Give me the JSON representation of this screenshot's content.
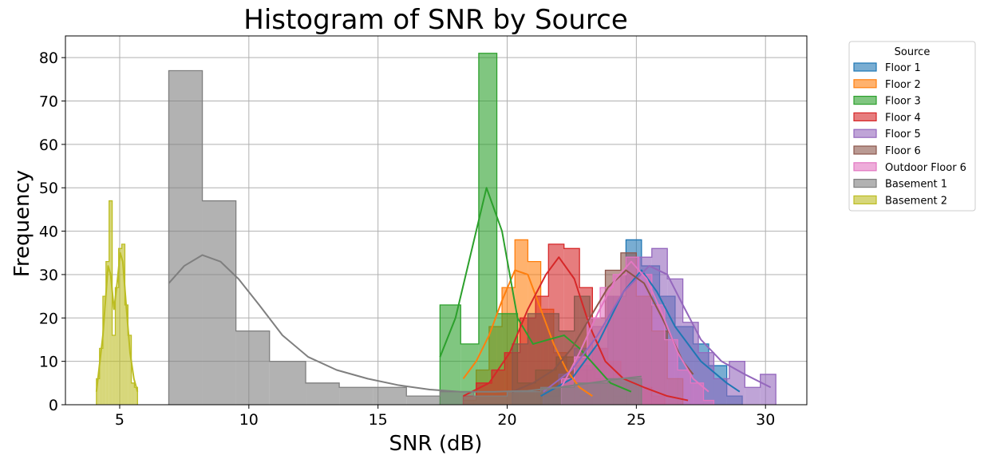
{
  "chart_data": {
    "type": "histogram",
    "title": "Histogram of SNR by Source",
    "xlabel": "SNR (dB)",
    "ylabel": "Frequency",
    "xlim": [
      2.9,
      31.6
    ],
    "ylim": [
      0,
      85
    ],
    "xticks": [
      5,
      10,
      15,
      20,
      25,
      30
    ],
    "yticks": [
      0,
      10,
      20,
      30,
      40,
      50,
      60,
      70,
      80
    ],
    "grid": true,
    "legend": {
      "title": "Source",
      "placement": "outside-top-right"
    },
    "series": [
      {
        "name": "Floor 1",
        "color": "#1f77b4",
        "bins": [
          [
            21.3,
            22.0,
            2
          ],
          [
            22.0,
            22.6,
            5
          ],
          [
            22.6,
            23.3,
            8
          ],
          [
            23.3,
            23.9,
            13
          ],
          [
            23.9,
            24.6,
            25
          ],
          [
            24.6,
            25.2,
            38
          ],
          [
            25.2,
            25.9,
            32
          ],
          [
            25.9,
            26.5,
            25
          ],
          [
            26.5,
            27.2,
            18
          ],
          [
            27.2,
            27.8,
            14
          ],
          [
            27.8,
            28.5,
            9
          ],
          [
            28.5,
            29.1,
            2
          ]
        ],
        "kde": [
          [
            21.3,
            2
          ],
          [
            22.5,
            6
          ],
          [
            23.5,
            14
          ],
          [
            24.5,
            26
          ],
          [
            25.2,
            31
          ],
          [
            25.8,
            26
          ],
          [
            26.5,
            18
          ],
          [
            27.5,
            10
          ],
          [
            28.5,
            5
          ],
          [
            29.0,
            3
          ]
        ]
      },
      {
        "name": "Floor 2",
        "color": "#ff7f0e",
        "bins": [
          [
            18.3,
            18.8,
            1
          ],
          [
            18.8,
            19.3,
            8
          ],
          [
            19.3,
            19.8,
            18
          ],
          [
            19.8,
            20.3,
            27
          ],
          [
            20.3,
            20.8,
            38
          ],
          [
            20.8,
            21.3,
            33
          ],
          [
            21.3,
            21.8,
            22
          ],
          [
            21.8,
            22.3,
            12
          ],
          [
            22.3,
            22.8,
            5
          ],
          [
            22.8,
            23.3,
            2
          ]
        ],
        "kde": [
          [
            18.3,
            6
          ],
          [
            18.8,
            10
          ],
          [
            19.3,
            16
          ],
          [
            19.8,
            24
          ],
          [
            20.3,
            31
          ],
          [
            20.8,
            30
          ],
          [
            21.3,
            22
          ],
          [
            21.8,
            14
          ],
          [
            22.3,
            8
          ],
          [
            22.8,
            4
          ],
          [
            23.3,
            2
          ]
        ]
      },
      {
        "name": "Floor 3",
        "color": "#2ca02c",
        "bins": [
          [
            17.4,
            18.2,
            23
          ],
          [
            18.2,
            18.9,
            14
          ],
          [
            18.9,
            19.6,
            81
          ],
          [
            19.6,
            20.4,
            21
          ],
          [
            20.4,
            21.1,
            5
          ],
          [
            21.1,
            21.9,
            8
          ],
          [
            21.9,
            22.6,
            11
          ],
          [
            22.6,
            23.4,
            9
          ],
          [
            23.4,
            24.1,
            6
          ],
          [
            24.1,
            24.8,
            2
          ]
        ],
        "kde": [
          [
            17.4,
            11
          ],
          [
            18.0,
            20
          ],
          [
            18.6,
            35
          ],
          [
            19.2,
            50
          ],
          [
            19.8,
            40
          ],
          [
            20.4,
            20
          ],
          [
            21.0,
            14
          ],
          [
            21.6,
            15
          ],
          [
            22.2,
            16
          ],
          [
            22.8,
            13
          ],
          [
            23.4,
            9
          ],
          [
            24.0,
            5
          ],
          [
            24.8,
            3
          ]
        ]
      },
      {
        "name": "Floor 4",
        "color": "#d62728",
        "bins": [
          [
            18.3,
            18.8,
            2
          ],
          [
            18.8,
            19.4,
            5
          ],
          [
            19.4,
            19.9,
            8
          ],
          [
            19.9,
            20.5,
            12
          ],
          [
            20.5,
            21.1,
            20
          ],
          [
            21.1,
            21.6,
            25
          ],
          [
            21.6,
            22.2,
            37
          ],
          [
            22.2,
            22.8,
            36
          ],
          [
            22.8,
            23.3,
            27
          ],
          [
            23.3,
            23.9,
            13
          ],
          [
            23.9,
            24.4,
            10
          ],
          [
            24.4,
            25.0,
            5
          ],
          [
            25.0,
            25.6,
            4
          ],
          [
            25.6,
            26.1,
            2
          ]
        ],
        "kde": [
          [
            18.3,
            2
          ],
          [
            19.3,
            5
          ],
          [
            20.1,
            12
          ],
          [
            20.8,
            22
          ],
          [
            21.5,
            30
          ],
          [
            22.0,
            34
          ],
          [
            22.6,
            29
          ],
          [
            23.2,
            18
          ],
          [
            23.8,
            10
          ],
          [
            24.5,
            6
          ],
          [
            25.3,
            4
          ],
          [
            26.2,
            2
          ],
          [
            27.0,
            1
          ]
        ]
      },
      {
        "name": "Floor 5",
        "color": "#9467bd",
        "bins": [
          [
            21.4,
            22.0,
            4
          ],
          [
            22.0,
            22.6,
            7
          ],
          [
            22.6,
            23.2,
            13
          ],
          [
            23.2,
            23.8,
            18
          ],
          [
            23.8,
            24.4,
            25
          ],
          [
            24.4,
            25.0,
            30
          ],
          [
            25.0,
            25.6,
            34
          ],
          [
            25.6,
            26.2,
            36
          ],
          [
            26.2,
            26.8,
            29
          ],
          [
            26.8,
            27.4,
            19
          ],
          [
            27.4,
            28.0,
            12
          ],
          [
            28.0,
            28.6,
            6
          ],
          [
            28.6,
            29.2,
            10
          ],
          [
            29.2,
            29.8,
            4
          ],
          [
            29.8,
            30.4,
            7
          ]
        ],
        "kde": [
          [
            21.4,
            3
          ],
          [
            22.5,
            8
          ],
          [
            23.5,
            16
          ],
          [
            24.5,
            26
          ],
          [
            25.5,
            32
          ],
          [
            26.2,
            30
          ],
          [
            26.8,
            23
          ],
          [
            27.5,
            15
          ],
          [
            28.3,
            10
          ],
          [
            29.2,
            7
          ],
          [
            30.2,
            4
          ]
        ]
      },
      {
        "name": "Floor 6",
        "color": "#8c564b",
        "bins": [
          [
            20.2,
            20.8,
            14
          ],
          [
            20.8,
            21.4,
            21
          ],
          [
            21.4,
            22.0,
            21
          ],
          [
            22.0,
            22.6,
            17
          ],
          [
            22.6,
            23.2,
            25
          ],
          [
            23.2,
            23.8,
            20
          ],
          [
            23.8,
            24.4,
            31
          ],
          [
            24.4,
            25.0,
            35
          ],
          [
            25.0,
            25.6,
            25
          ],
          [
            25.6,
            26.2,
            17
          ],
          [
            26.2,
            26.8,
            6
          ]
        ],
        "kde": [
          [
            20.2,
            3
          ],
          [
            21.0,
            5
          ],
          [
            21.8,
            8
          ],
          [
            22.5,
            13
          ],
          [
            23.2,
            20
          ],
          [
            23.9,
            27
          ],
          [
            24.6,
            31
          ],
          [
            25.3,
            28
          ],
          [
            26.0,
            20
          ],
          [
            26.8,
            10
          ],
          [
            27.2,
            7
          ]
        ]
      },
      {
        "name": "Outdoor Floor 6",
        "color": "#e377c2",
        "bins": [
          [
            22.1,
            22.6,
            6
          ],
          [
            22.6,
            23.1,
            11
          ],
          [
            23.1,
            23.6,
            20
          ],
          [
            23.6,
            24.1,
            27
          ],
          [
            24.1,
            24.6,
            30
          ],
          [
            24.6,
            25.1,
            34
          ],
          [
            25.1,
            25.6,
            30
          ],
          [
            25.6,
            26.1,
            23
          ],
          [
            26.1,
            26.6,
            15
          ],
          [
            26.6,
            27.1,
            8
          ],
          [
            27.1,
            27.6,
            5
          ],
          [
            27.6,
            28.0,
            1
          ]
        ],
        "kde": [
          [
            22.1,
            4
          ],
          [
            22.8,
            12
          ],
          [
            23.5,
            21
          ],
          [
            24.2,
            29
          ],
          [
            24.8,
            33
          ],
          [
            25.4,
            29
          ],
          [
            26.0,
            21
          ],
          [
            26.6,
            12
          ],
          [
            27.2,
            6
          ],
          [
            27.8,
            3
          ]
        ]
      },
      {
        "name": "Basement 1",
        "color": "#7f7f7f",
        "bins": [
          [
            6.9,
            8.2,
            77
          ],
          [
            8.2,
            9.5,
            47
          ],
          [
            9.5,
            10.8,
            17
          ],
          [
            10.8,
            12.2,
            10
          ],
          [
            12.2,
            13.5,
            5
          ],
          [
            13.5,
            14.8,
            4
          ],
          [
            14.8,
            16.1,
            4
          ],
          [
            16.1,
            17.4,
            2
          ],
          [
            17.4,
            18.7,
            3
          ],
          [
            18.7,
            20.0,
            2
          ],
          [
            20.0,
            21.3,
            3
          ],
          [
            21.3,
            22.6,
            4
          ],
          [
            22.6,
            23.9,
            5
          ],
          [
            23.9,
            25.2,
            6
          ]
        ],
        "kde": [
          [
            6.9,
            28
          ],
          [
            7.5,
            32
          ],
          [
            8.2,
            34.5
          ],
          [
            8.9,
            33
          ],
          [
            9.6,
            29
          ],
          [
            10.4,
            23
          ],
          [
            11.3,
            16
          ],
          [
            12.3,
            11
          ],
          [
            13.4,
            8
          ],
          [
            14.6,
            6
          ],
          [
            15.8,
            4.5
          ],
          [
            17.0,
            3.5
          ],
          [
            18.2,
            3
          ],
          [
            19.5,
            3
          ],
          [
            20.8,
            3.2
          ],
          [
            22.0,
            4
          ],
          [
            23.2,
            5
          ],
          [
            24.4,
            6
          ],
          [
            25.2,
            6.5
          ]
        ]
      },
      {
        "name": "Basement 2",
        "color": "#bcbd22",
        "bins": [
          [
            4.1,
            4.22,
            6
          ],
          [
            4.22,
            4.35,
            13
          ],
          [
            4.35,
            4.47,
            25
          ],
          [
            4.47,
            4.59,
            33
          ],
          [
            4.59,
            4.71,
            47
          ],
          [
            4.71,
            4.83,
            16
          ],
          [
            4.83,
            4.96,
            27
          ],
          [
            4.96,
            5.08,
            36
          ],
          [
            5.08,
            5.2,
            37
          ],
          [
            5.2,
            5.32,
            23
          ],
          [
            5.32,
            5.45,
            16
          ],
          [
            5.45,
            5.57,
            5
          ],
          [
            5.57,
            5.69,
            4
          ]
        ],
        "kde": [
          [
            4.1,
            3
          ],
          [
            4.35,
            16
          ],
          [
            4.55,
            32
          ],
          [
            4.65,
            30
          ],
          [
            4.78,
            22
          ],
          [
            4.9,
            28
          ],
          [
            5.02,
            35
          ],
          [
            5.12,
            33
          ],
          [
            5.25,
            23
          ],
          [
            5.4,
            12
          ],
          [
            5.55,
            6
          ],
          [
            5.69,
            3
          ]
        ]
      }
    ]
  }
}
